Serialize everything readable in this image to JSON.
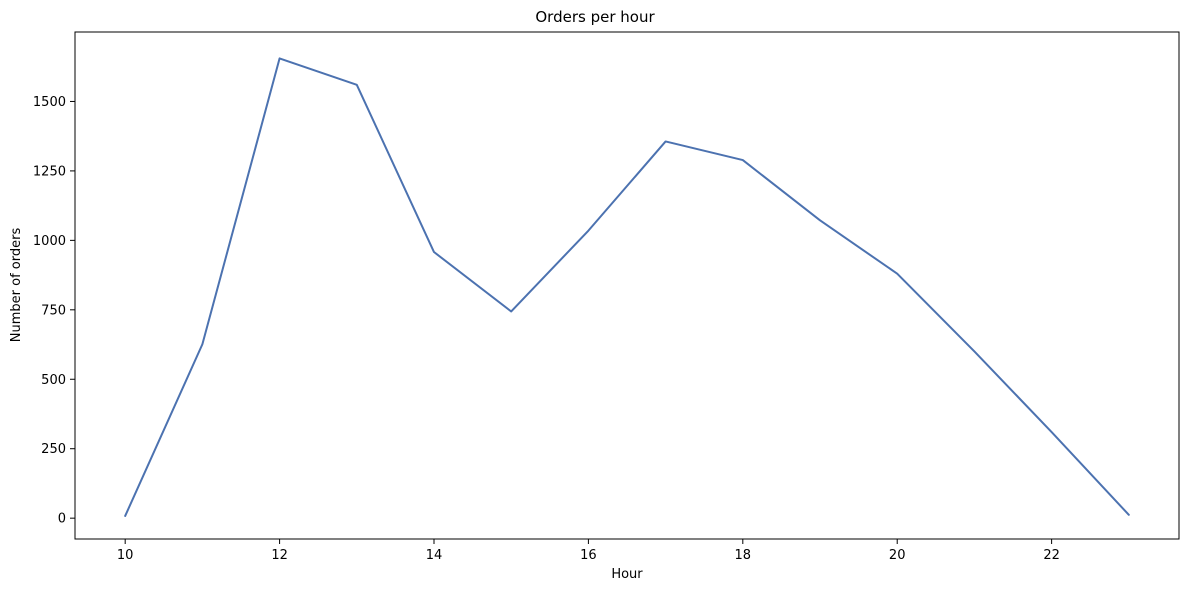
{
  "chart_data": {
    "type": "line",
    "title": "Orders per hour",
    "xlabel": "Hour",
    "ylabel": "Number of orders",
    "xlim": [
      9.35,
      23.65
    ],
    "ylim": [
      -75,
      1750
    ],
    "xticks": [
      10,
      12,
      14,
      16,
      18,
      20,
      22
    ],
    "yticks": [
      0,
      250,
      500,
      750,
      1000,
      1250,
      1500
    ],
    "grid": false,
    "legend": "none",
    "series": [
      {
        "color": "#4c72b0",
        "x": [
          10,
          11,
          12,
          13,
          14,
          15,
          16,
          17,
          18,
          19,
          20,
          21,
          22,
          23
        ],
        "y": [
          8,
          626,
          1655,
          1560,
          958,
          744,
          1035,
          1356,
          1289,
          1072,
          880,
          600,
          310,
          12
        ]
      }
    ]
  }
}
